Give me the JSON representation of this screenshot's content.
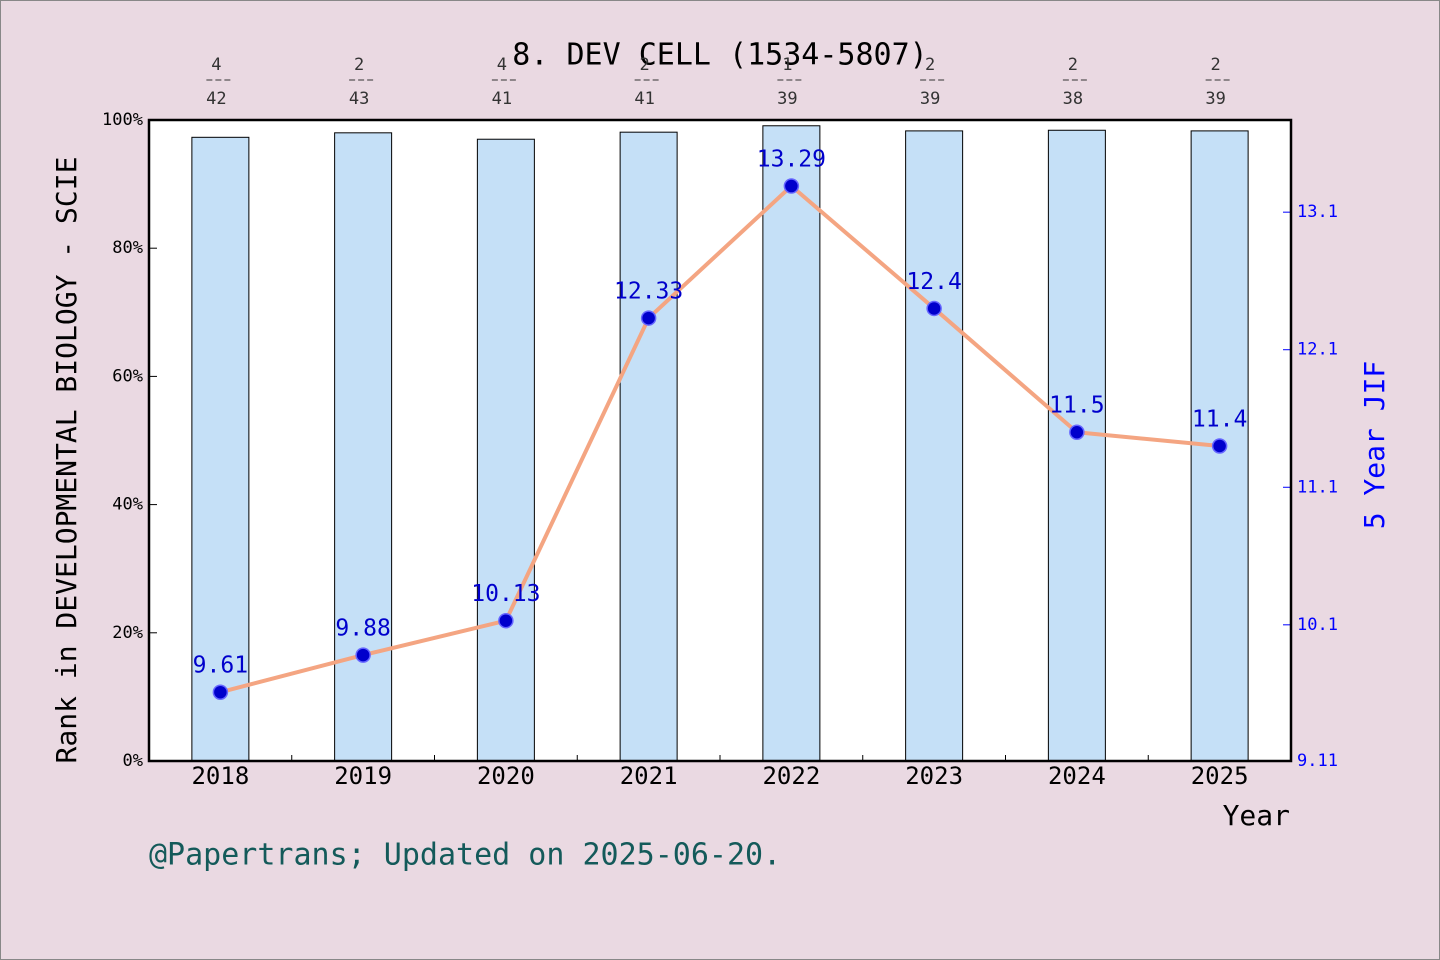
{
  "chart_data": {
    "type": "bar_line",
    "title": "8. DEV CELL (1534-5807)",
    "y_label": "Rank in DEVELOPMENTAL BIOLOGY - SCIE",
    "y2_label": "5 Year JIF",
    "x_label": "Year",
    "footer": "@Papertrans; Updated on 2025-06-20.",
    "categories": [
      "2018",
      "2019",
      "2020",
      "2021",
      "2022",
      "2023",
      "2024",
      "2025"
    ],
    "rank_numerators": [
      4,
      2,
      4,
      2,
      1,
      2,
      2,
      2
    ],
    "rank_totals": [
      42,
      43,
      41,
      41,
      39,
      39,
      38,
      39
    ],
    "series": [
      {
        "name": "Rank",
        "color": "#c5e0f7",
        "values": [
          97.3,
          98.0,
          97.0,
          98.1,
          99.1,
          98.3,
          98.4,
          98.3
        ]
      },
      {
        "name": "5 Year JIF",
        "color": "#f4a582",
        "axis": "y2",
        "values": [
          9.61,
          9.88,
          10.13,
          12.33,
          13.29,
          12.4,
          11.5,
          11.4
        ]
      }
    ],
    "ylim": [
      0,
      100
    ],
    "yticks": [
      {
        "value": 0,
        "label": "0%"
      },
      {
        "value": 20,
        "label": "20%"
      },
      {
        "value": 40,
        "label": "40%"
      },
      {
        "value": 60,
        "label": "60%"
      },
      {
        "value": 80,
        "label": "80%"
      },
      {
        "value": 100,
        "label": "100%"
      }
    ],
    "y2lim": [
      9.11,
      13.77
    ],
    "y2ticks": [
      9.11,
      10.1,
      11.1,
      12.1,
      13.1
    ]
  }
}
